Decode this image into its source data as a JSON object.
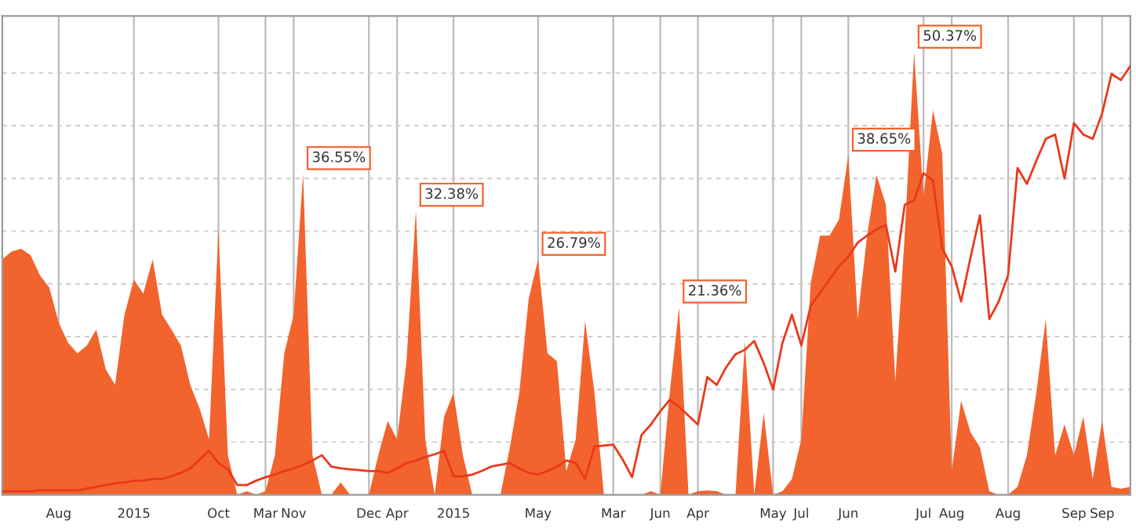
{
  "chart_data": {
    "type": "area",
    "categories": [
      null,
      null,
      null,
      null,
      null,
      null,
      "Aug",
      null,
      null,
      null,
      null,
      null,
      null,
      null,
      "2015",
      null,
      null,
      null,
      null,
      null,
      null,
      null,
      null,
      "Oct",
      null,
      null,
      null,
      null,
      "Mar",
      null,
      null,
      "Nov",
      null,
      null,
      null,
      null,
      null,
      null,
      null,
      "Dec",
      null,
      null,
      "Apr",
      null,
      null,
      null,
      null,
      null,
      "2015",
      null,
      null,
      null,
      null,
      null,
      null,
      null,
      null,
      "May",
      null,
      null,
      null,
      null,
      null,
      null,
      null,
      "Mar",
      null,
      null,
      null,
      null,
      "Jun",
      null,
      null,
      null,
      "Apr",
      null,
      null,
      null,
      null,
      null,
      null,
      null,
      "May",
      null,
      null,
      "Jul",
      null,
      null,
      null,
      null,
      "Jun",
      null,
      null,
      null,
      null,
      null,
      null,
      null,
      "Jul",
      null,
      null,
      "Aug",
      null,
      null,
      null,
      null,
      null,
      "Aug",
      null,
      null,
      null,
      null,
      null,
      null,
      "Sep",
      null,
      null,
      "Sep",
      null,
      null,
      null
    ],
    "series": [
      {
        "color": "#f2632e",
        "values": [
          26.8,
          27.7,
          28.0,
          27.3,
          25.0,
          23.6,
          19.6,
          17.3,
          16.1,
          17.0,
          18.8,
          14.3,
          12.5,
          20.5,
          24.5,
          22.9,
          26.8,
          20.5,
          18.8,
          17.0,
          12.5,
          9.8,
          6.3,
          30.2,
          4.5,
          0,
          0.4,
          0,
          0.4,
          4.5,
          16.1,
          20.5,
          36.55,
          4.5,
          0,
          0,
          1.4,
          0,
          0,
          0,
          4.5,
          8.4,
          6.3,
          15.2,
          32.38,
          6.3,
          0,
          8.9,
          11.6,
          4.5,
          0,
          0,
          0,
          0,
          5.4,
          11.6,
          22.3,
          26.79,
          16.1,
          15.2,
          2.7,
          6.3,
          19.8,
          11.6,
          0,
          0,
          0,
          0,
          0,
          0.4,
          0,
          11.6,
          21.36,
          0,
          0.4,
          0.5,
          0.4,
          0,
          0,
          17.5,
          0,
          9.3,
          0,
          0.4,
          1.8,
          6.3,
          24.1,
          29.5,
          29.5,
          31.3,
          38.65,
          20.0,
          29.5,
          36.4,
          33.0,
          12.9,
          29.5,
          50.37,
          33.9,
          43.8,
          38.8,
          2.7,
          10.7,
          7.1,
          5.4,
          0.4,
          0,
          0,
          0.9,
          4.5,
          11.6,
          20.0,
          4.5,
          8.0,
          4.5,
          8.9,
          1.8,
          8.4,
          0.9,
          0.7,
          0.9
        ],
        "value_labels": [
          null,
          null,
          null,
          null,
          null,
          null,
          null,
          null,
          null,
          null,
          null,
          null,
          null,
          null,
          null,
          null,
          null,
          null,
          null,
          null,
          null,
          null,
          null,
          null,
          null,
          null,
          null,
          null,
          null,
          null,
          null,
          null,
          "36.55%",
          null,
          null,
          null,
          null,
          null,
          null,
          null,
          null,
          null,
          null,
          null,
          "32.38%",
          null,
          null,
          null,
          null,
          null,
          null,
          null,
          null,
          null,
          null,
          null,
          null,
          "26.79%",
          null,
          null,
          null,
          null,
          null,
          null,
          null,
          null,
          null,
          null,
          null,
          null,
          null,
          null,
          "21.36%",
          null,
          null,
          null,
          null,
          null,
          null,
          null,
          null,
          null,
          null,
          null,
          null,
          null,
          null,
          null,
          null,
          null,
          "38.65%",
          null,
          null,
          null,
          null,
          null,
          null,
          "50.37%",
          null,
          null,
          null,
          null,
          null,
          null,
          null,
          null,
          null,
          null,
          null,
          null,
          null,
          null,
          null,
          null,
          null,
          null,
          null,
          null,
          null,
          null,
          null
        ]
      },
      {
        "type": "line",
        "color": "#e8391c",
        "values": [
          0.4,
          0.4,
          0.4,
          0.4,
          0.5,
          0.5,
          0.5,
          0.5,
          0.5,
          0.7,
          0.9,
          1.1,
          1.3,
          1.4,
          1.6,
          1.6,
          1.8,
          1.8,
          2.1,
          2.5,
          3.0,
          4.0,
          5.0,
          3.6,
          2.9,
          1.1,
          1.1,
          1.6,
          2.0,
          2.3,
          2.7,
          3.0,
          3.4,
          3.9,
          4.5,
          3.2,
          3.0,
          2.9,
          2.8,
          2.7,
          2.7,
          2.5,
          3.0,
          3.6,
          3.9,
          4.3,
          4.6,
          5.0,
          2.1,
          2.1,
          2.3,
          2.7,
          3.2,
          3.4,
          3.6,
          3.0,
          2.5,
          2.3,
          2.7,
          3.2,
          3.9,
          3.6,
          1.8,
          5.5,
          5.6,
          5.7,
          4.0,
          2.0,
          6.8,
          8.0,
          9.5,
          10.8,
          10.0,
          9.0,
          8.0,
          13.4,
          12.5,
          14.5,
          16.0,
          16.5,
          17.5,
          15.0,
          12.0,
          17.3,
          20.5,
          17.0,
          21.5,
          23.0,
          24.5,
          26.0,
          27.1,
          28.7,
          29.5,
          30.2,
          30.7,
          25.4,
          33.0,
          33.5,
          36.6,
          35.8,
          28.0,
          26.0,
          22.0,
          27.0,
          31.8,
          20.0,
          22.0,
          25.0,
          37.2,
          35.4,
          38.0,
          40.5,
          41.0,
          36.0,
          42.3,
          41.0,
          40.5,
          43.4,
          47.9,
          47.2,
          48.8
        ]
      }
    ],
    "ylim": [
      0,
      54.5
    ],
    "yticks": [
      {
        "value": 6,
        "label": null
      },
      {
        "value": 12,
        "label": null
      },
      {
        "value": 18,
        "label": null
      },
      {
        "value": 24,
        "label": null
      },
      {
        "value": 30,
        "label": null
      },
      {
        "value": 36,
        "label": null
      },
      {
        "value": 42,
        "label": null
      },
      {
        "value": 48,
        "label": null
      }
    ],
    "grid": true,
    "tick_labels": "x"
  }
}
